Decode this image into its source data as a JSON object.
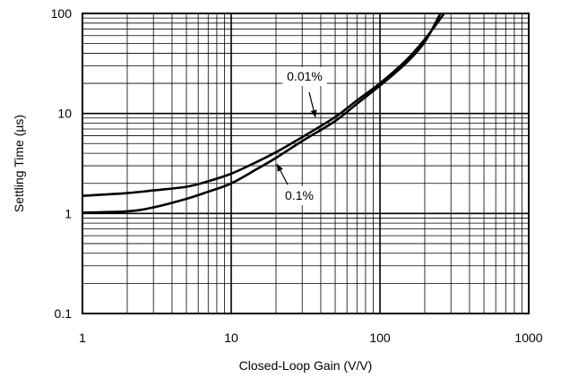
{
  "chart_data": {
    "type": "line",
    "title": "",
    "xlabel": "Closed-Loop Gain (V/V)",
    "ylabel": "Settling Time (µs)",
    "x_scale": "log",
    "y_scale": "log",
    "xlim": [
      1,
      1000
    ],
    "ylim": [
      0.1,
      100
    ],
    "x_ticks": [
      1,
      10,
      100,
      1000
    ],
    "x_tick_labels": [
      "1",
      "10",
      "100",
      "1000"
    ],
    "y_ticks": [
      0.1,
      1,
      10,
      100
    ],
    "y_tick_labels": [
      "0.1",
      "1",
      "10",
      "100"
    ],
    "grid": true,
    "legend": "none",
    "series": [
      {
        "name": "0.01%",
        "x": [
          1,
          2,
          3,
          5,
          7,
          10,
          15,
          20,
          30,
          50,
          70,
          100,
          150,
          200,
          270
        ],
        "y": [
          1.5,
          1.6,
          1.7,
          1.85,
          2.1,
          2.5,
          3.3,
          4.1,
          5.8,
          9.2,
          13.5,
          20,
          34,
          55,
          100
        ]
      },
      {
        "name": "0.1%",
        "x": [
          1,
          2,
          3,
          5,
          7,
          10,
          15,
          20,
          30,
          50,
          70,
          100,
          150,
          200,
          255
        ],
        "y": [
          1.02,
          1.05,
          1.15,
          1.4,
          1.65,
          2.0,
          2.8,
          3.6,
          5.3,
          8.4,
          12.5,
          19,
          32,
          52,
          100
        ]
      }
    ],
    "annotations": [
      {
        "text": "0.01%",
        "series": "0.01%"
      },
      {
        "text": "0.1%",
        "series": "0.1%"
      }
    ]
  }
}
